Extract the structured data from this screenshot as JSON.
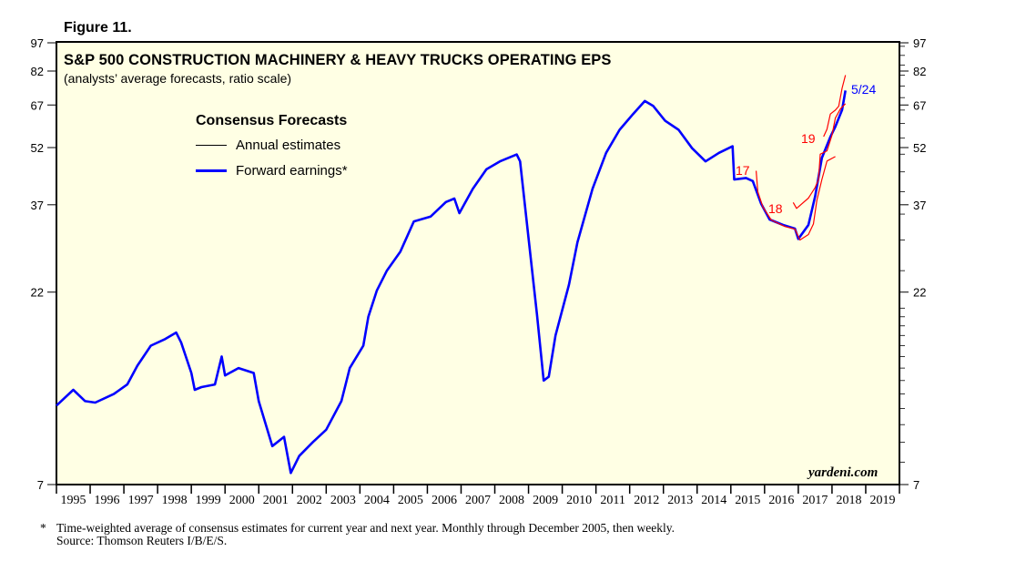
{
  "figure_label": "Figure 11.",
  "chart_data": {
    "type": "line",
    "title": "S&P 500 CONSTRUCTION MACHINERY & HEAVY TRUCKS OPERATING EPS",
    "subtitle": "(analysts’ average forecasts, ratio scale)",
    "y_scale": "log",
    "ylim": [
      7,
      97
    ],
    "y_ticks": [
      7,
      22,
      37,
      52,
      67,
      82,
      97
    ],
    "xlim": [
      1995,
      2020
    ],
    "x_tick_labels": [
      "1995",
      "1996",
      "1997",
      "1998",
      "1999",
      "2000",
      "2001",
      "2002",
      "2003",
      "2004",
      "2005",
      "2006",
      "2007",
      "2008",
      "2009",
      "2010",
      "2011",
      "2012",
      "2013",
      "2014",
      "2015",
      "2016",
      "2017",
      "2018",
      "2019"
    ],
    "legend": {
      "title": "Consensus Forecasts",
      "position": "top-left",
      "items": [
        "Annual estimates",
        "Forward earnings*"
      ]
    },
    "colors": {
      "forward": "#0000ff",
      "annual": "#ff0000",
      "plot_bg": "#ffffe4"
    },
    "series": [
      {
        "name": "Forward earnings*",
        "x": [
          1995.0,
          1995.5,
          1995.85,
          1996.15,
          1996.7,
          1997.1,
          1997.4,
          1997.8,
          1998.2,
          1998.55,
          1998.7,
          1999.0,
          1999.1,
          1999.3,
          1999.7,
          1999.9,
          2000.0,
          2000.4,
          2000.85,
          2001.0,
          2001.4,
          2001.75,
          2001.95,
          2002.2,
          2002.6,
          2003.0,
          2003.45,
          2003.7,
          2004.1,
          2004.25,
          2004.5,
          2004.8,
          2005.2,
          2005.6,
          2006.1,
          2006.55,
          2006.8,
          2006.95,
          2007.35,
          2007.75,
          2008.15,
          2008.65,
          2008.75,
          2009.0,
          2009.25,
          2009.45,
          2009.6,
          2009.8,
          2010.2,
          2010.45,
          2010.9,
          2011.3,
          2011.7,
          2012.1,
          2012.45,
          2012.7,
          2013.05,
          2013.45,
          2013.85,
          2014.25,
          2014.65,
          2015.05,
          2015.1,
          2015.45,
          2015.65,
          2015.9,
          2016.15,
          2016.55,
          2016.9,
          2017.0,
          2017.3,
          2017.5,
          2017.7,
          2017.95,
          2018.1,
          2018.3,
          2018.4
        ],
        "values": [
          11.2,
          12.3,
          11.5,
          11.4,
          12.0,
          12.7,
          14.2,
          16.0,
          16.6,
          17.3,
          16.3,
          13.6,
          12.3,
          12.5,
          12.7,
          15.0,
          13.4,
          14.0,
          13.6,
          11.5,
          8.8,
          9.3,
          7.5,
          8.3,
          9.0,
          9.7,
          11.5,
          14.0,
          16.0,
          19.0,
          22.2,
          25.0,
          28.0,
          33.5,
          34.5,
          37.6,
          38.4,
          35.2,
          40.7,
          45.7,
          47.9,
          49.9,
          47.9,
          30.3,
          19.3,
          13.0,
          13.3,
          17.0,
          23.0,
          29.6,
          40.7,
          50.4,
          57.8,
          63.5,
          68.6,
          66.6,
          61.0,
          57.8,
          51.8,
          47.9,
          50.4,
          52.4,
          43.0,
          43.4,
          42.6,
          37.2,
          33.9,
          32.8,
          32.1,
          30.2,
          32.8,
          38.9,
          48.9,
          55.4,
          58.9,
          65.1,
          73.0
        ]
      },
      {
        "name": "2017 annual estimate",
        "label": "17",
        "x": [
          2015.75,
          2015.8,
          2015.95,
          2016.2,
          2016.6,
          2016.9,
          2017.05,
          2017.3,
          2017.45,
          2017.55,
          2017.7,
          2017.85,
          2018.1
        ],
        "values": [
          45.3,
          40.0,
          36.5,
          33.8,
          32.5,
          32.0,
          30.0,
          31.0,
          33.0,
          38.0,
          43.0,
          48.0,
          49.3
        ]
      },
      {
        "name": "2018 annual estimate",
        "label": "18",
        "x": [
          2016.85,
          2016.95,
          2017.3,
          2017.5,
          2017.6,
          2017.65,
          2017.85,
          2018.0,
          2018.1,
          2018.25,
          2018.4
        ],
        "values": [
          37.5,
          36.2,
          38.5,
          41.0,
          43.0,
          50.0,
          51.0,
          56.0,
          62.0,
          65.5,
          67.5
        ]
      },
      {
        "name": "2019 annual estimate",
        "label": "19",
        "x": [
          2017.75,
          2017.85,
          2017.95,
          2018.1,
          2018.2,
          2018.3,
          2018.4
        ],
        "values": [
          55.5,
          58.0,
          63.5,
          65.0,
          66.5,
          74.0,
          80.0
        ]
      }
    ],
    "annotations": {
      "last_point": "5/24"
    }
  },
  "watermark": "yardeni.com",
  "footnote": {
    "marker": "*",
    "text": "Time-weighted average of consensus estimates for current year and next year. Monthly through December 2005, then weekly.",
    "source": "Source: Thomson Reuters I/B/E/S."
  }
}
